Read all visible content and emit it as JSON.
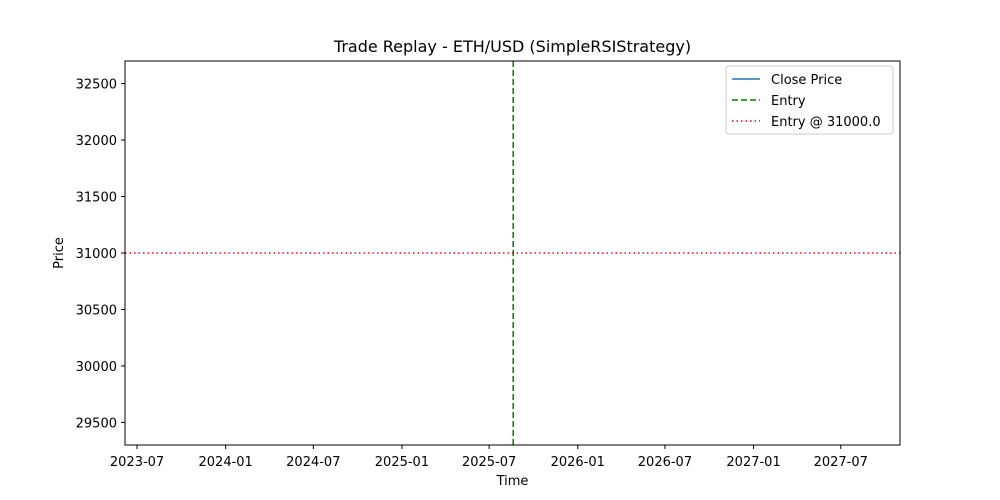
{
  "chart_data": {
    "type": "line",
    "title": "Trade Replay - ETH/USD (SimpleRSIStrategy)",
    "xlabel": "Time",
    "ylabel": "Price",
    "xlim": [
      "2023-06-06",
      "2027-11-01"
    ],
    "ylim": [
      29300,
      32700
    ],
    "xticks": [
      "2023-07",
      "2024-01",
      "2024-07",
      "2025-01",
      "2025-07",
      "2026-01",
      "2026-07",
      "2027-01",
      "2027-07"
    ],
    "xtick_dates": [
      "2023-07-01",
      "2024-01-01",
      "2024-07-01",
      "2025-01-01",
      "2025-07-01",
      "2026-01-01",
      "2026-07-01",
      "2027-01-01",
      "2027-07-01"
    ],
    "yticks": [
      29500,
      30000,
      30500,
      31000,
      31500,
      32000,
      32500
    ],
    "grid": false,
    "legend_position": "top-right",
    "series": [
      {
        "name": "Close Price",
        "style": "solid",
        "color": "#1f77b4",
        "values": []
      }
    ],
    "entry_line": {
      "name": "Entry",
      "orientation": "vertical",
      "style": "dashed",
      "color": "#008000",
      "x": "2025-08-20"
    },
    "entry_price_line": {
      "name": "Entry @ 31000.0",
      "orientation": "horizontal",
      "style": "dotted",
      "color": "#ff0000",
      "y": 31000
    }
  }
}
